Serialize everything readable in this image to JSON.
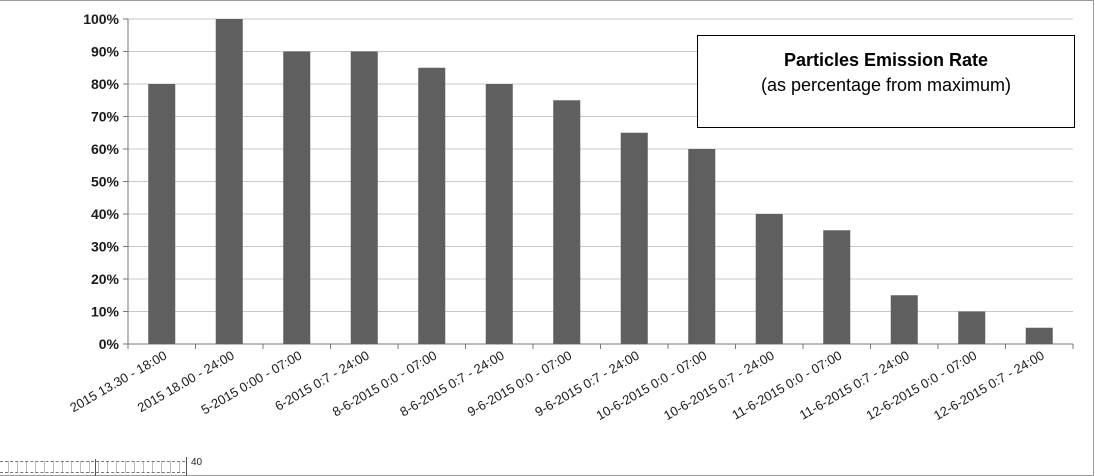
{
  "chart_data": {
    "type": "bar",
    "title": "Particles  Emission Rate",
    "subtitle": "(as percentage from maximum)",
    "xlabel": "",
    "ylabel": "",
    "ylim": [
      0,
      100
    ],
    "yticks": [
      "0%",
      "10%",
      "20%",
      "30%",
      "40%",
      "50%",
      "60%",
      "70%",
      "80%",
      "90%",
      "100%"
    ],
    "grid": true,
    "bar_color": "#5f5f5f",
    "categories": [
      "2015 13.30 - 18:00",
      "2015 18.00 - 24:00",
      "5-2015 0:00 - 07:00",
      "6-2015 0:7 - 24:00",
      "8-6-2015 0:0 - 07:00",
      "8-6-2015 0:7 - 24:00",
      "9-6-2015 0:0 - 07:00",
      "9-6-2015 0:7 - 24:00",
      "10-6-2015 0:0 - 07:00",
      "10-6-2015 0:7 - 24:00",
      "11-6-2015 0:0 - 07:00",
      "11-6-2015 0:7 - 24:00",
      "12-6-2015 0:0 - 07:00",
      "12-6-2015 0:7 - 24:00"
    ],
    "values": [
      80,
      100,
      90,
      90,
      85,
      80,
      75,
      65,
      60,
      40,
      35,
      15,
      10,
      5
    ]
  },
  "inset": {
    "label": "40"
  }
}
